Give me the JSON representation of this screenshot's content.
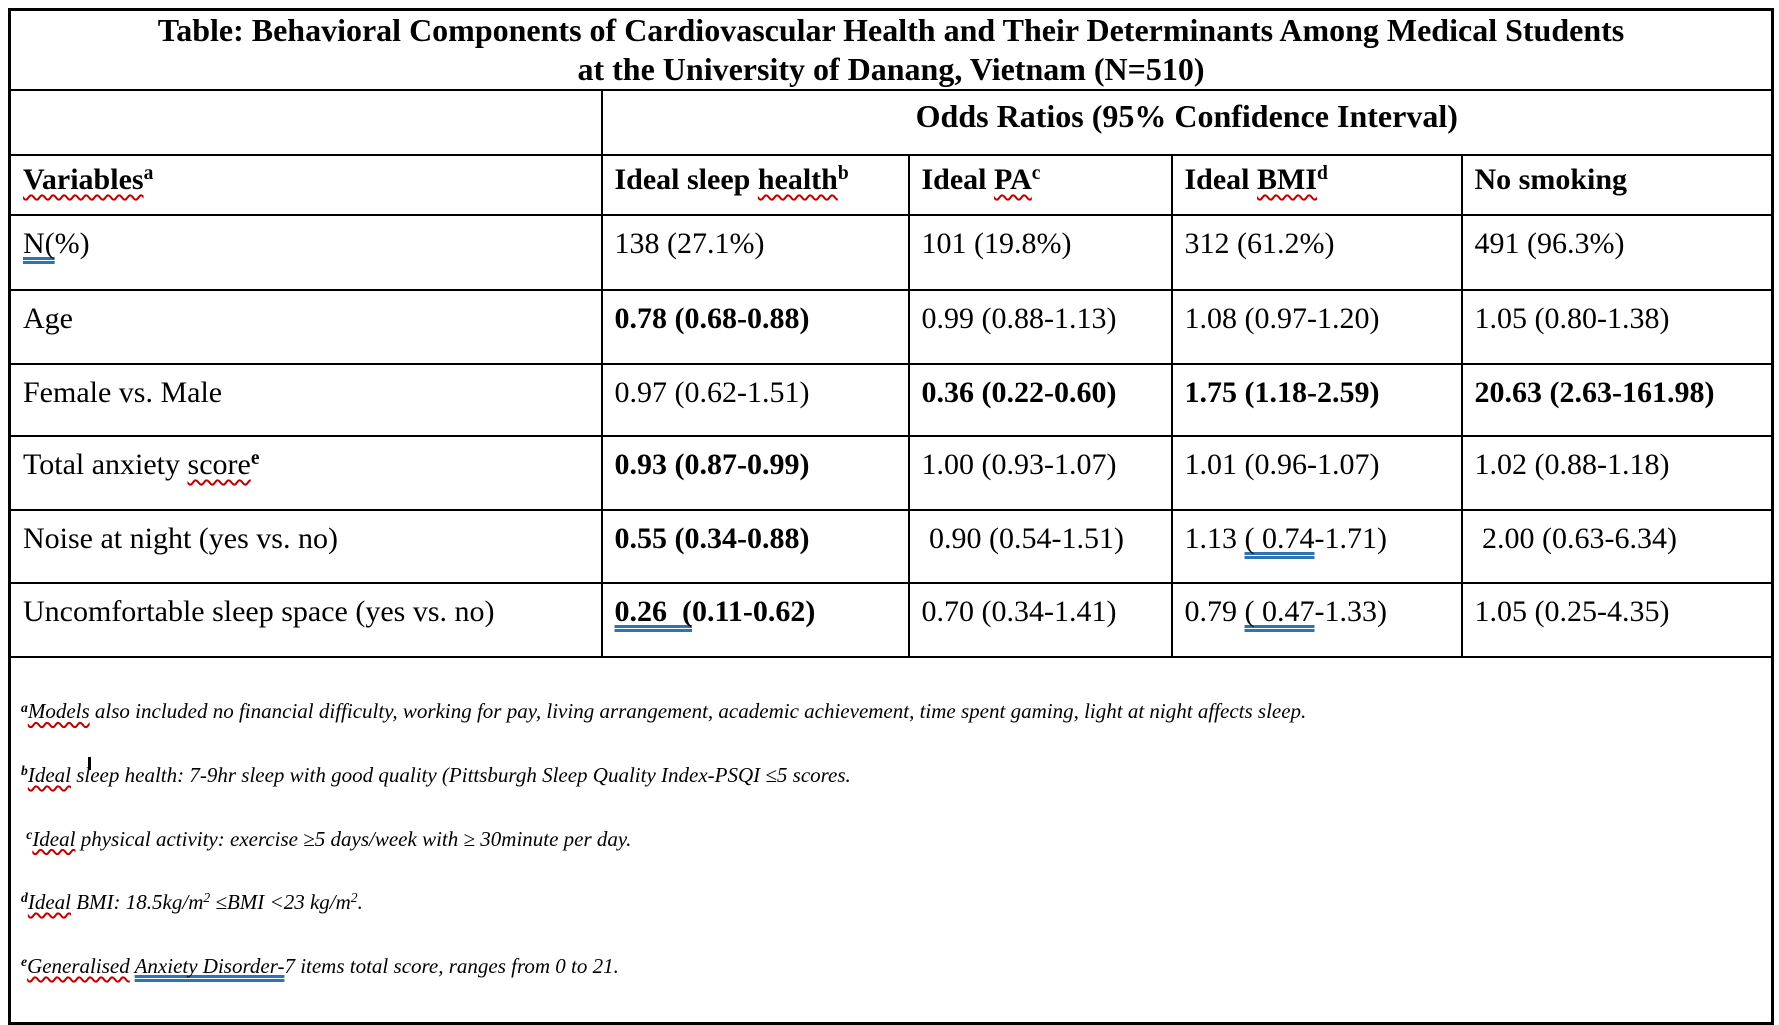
{
  "colors": {
    "border_black": "#000000",
    "spellcheck_red": "#c00000",
    "grammar_blue": "#2e74b5"
  },
  "title": {
    "line1": "Table: Behavioral Components of Cardiovascular Health and Their Determinants Among Medical Students",
    "line2": "at the University of Danang, Vietnam (N=510)"
  },
  "spanner": "Odds Ratios (95% Confidence Interval)",
  "columns": [
    {
      "runs": [
        {
          "t": "Variables",
          "s": [
            "red"
          ]
        },
        {
          "t": "a",
          "s": [
            "sup"
          ]
        }
      ]
    },
    {
      "runs": [
        {
          "t": "Ideal sleep "
        },
        {
          "t": "health",
          "s": [
            "red"
          ]
        },
        {
          "t": "b",
          "s": [
            "sup"
          ]
        }
      ]
    },
    {
      "runs": [
        {
          "t": "Ideal "
        },
        {
          "t": "PA",
          "s": [
            "red"
          ]
        },
        {
          "t": "c",
          "s": [
            "sup"
          ]
        }
      ]
    },
    {
      "runs": [
        {
          "t": "Ideal "
        },
        {
          "t": "BMI",
          "s": [
            "red"
          ]
        },
        {
          "t": "d",
          "s": [
            "sup"
          ]
        }
      ]
    },
    {
      "runs": [
        {
          "t": "No smoking"
        }
      ]
    }
  ],
  "rows": [
    {
      "label": {
        "runs": [
          {
            "t": "N(",
            "s": [
              "blue"
            ]
          },
          {
            "t": "%)"
          }
        ]
      },
      "cells": [
        {
          "runs": [
            {
              "t": "138 (27.1%)"
            }
          ]
        },
        {
          "runs": [
            {
              "t": "101 (19.8%)"
            }
          ]
        },
        {
          "runs": [
            {
              "t": "312 (61.2%)"
            }
          ]
        },
        {
          "runs": [
            {
              "t": "491 (96.3%)"
            }
          ]
        }
      ]
    },
    {
      "label": {
        "runs": [
          {
            "t": "Age"
          }
        ]
      },
      "cells": [
        {
          "bold": true,
          "runs": [
            {
              "t": "0.78 (0.68-0.88)"
            }
          ]
        },
        {
          "runs": [
            {
              "t": "0.99 (0.88-1.13)"
            }
          ]
        },
        {
          "runs": [
            {
              "t": "1.08 (0.97-1.20)"
            }
          ]
        },
        {
          "runs": [
            {
              "t": "1.05 (0.80-1.38)"
            }
          ]
        }
      ]
    },
    {
      "label": {
        "runs": [
          {
            "t": "Female vs. Male"
          }
        ]
      },
      "cells": [
        {
          "runs": [
            {
              "t": "0.97 (0.62-1.51)"
            }
          ]
        },
        {
          "bold": true,
          "runs": [
            {
              "t": "0.36 (0.22-0.60)"
            }
          ]
        },
        {
          "bold": true,
          "runs": [
            {
              "t": "1.75 (1.18-2.59)"
            }
          ]
        },
        {
          "bold": true,
          "runs": [
            {
              "t": "20.63 (2.63-161.98)"
            }
          ]
        }
      ]
    },
    {
      "label": {
        "runs": [
          {
            "t": "Total anxiety "
          },
          {
            "t": "score",
            "s": [
              "red"
            ]
          },
          {
            "t": "e",
            "s": [
              "sup",
              "b"
            ]
          }
        ]
      },
      "cells": [
        {
          "bold": true,
          "runs": [
            {
              "t": "0.93 (0.87-0.99)"
            }
          ]
        },
        {
          "runs": [
            {
              "t": "1.00 (0.93-1.07)"
            }
          ]
        },
        {
          "runs": [
            {
              "t": "1.01 (0.96-1.07)"
            }
          ]
        },
        {
          "runs": [
            {
              "t": "1.02 (0.88-1.18)"
            }
          ]
        }
      ]
    },
    {
      "label": {
        "runs": [
          {
            "t": "Noise at night (yes vs. no)"
          }
        ]
      },
      "cells": [
        {
          "bold": true,
          "runs": [
            {
              "t": "0.55 (0.34-0.88)"
            }
          ]
        },
        {
          "runs": [
            {
              "t": " 0.90 (0.54-1.51)"
            }
          ]
        },
        {
          "runs": [
            {
              "t": "1.13 "
            },
            {
              "t": "( 0.74",
              "s": [
                "blue"
              ]
            },
            {
              "t": "-1.71)"
            }
          ]
        },
        {
          "runs": [
            {
              "t": " 2.00 (0.63-6.34)"
            }
          ]
        }
      ]
    },
    {
      "label": {
        "runs": [
          {
            "t": "Uncomfortable sleep space (yes vs. no)"
          }
        ]
      },
      "cells": [
        {
          "bold": true,
          "runs": [
            {
              "t": "0.26  (",
              "s": [
                "blue"
              ]
            },
            {
              "t": "0.11-0.62)"
            }
          ]
        },
        {
          "runs": [
            {
              "t": "0.70 (0.34-1.41)"
            }
          ]
        },
        {
          "runs": [
            {
              "t": "0.79 "
            },
            {
              "t": "( 0.47",
              "s": [
                "blue"
              ]
            },
            {
              "t": "-1.33)"
            }
          ]
        },
        {
          "runs": [
            {
              "t": "1.05 (0.25-4.35)"
            }
          ]
        }
      ]
    }
  ],
  "footnotes": [
    {
      "runs": [
        {
          "t": "a",
          "s": [
            "sup",
            "b"
          ]
        },
        {
          "t": "Models",
          "s": [
            "red"
          ]
        },
        {
          "t": " also included no financial difficulty, working for pay, living arrangement, academic achievement, time spent gaming, light at night affects sleep."
        }
      ]
    },
    {
      "runs": [
        {
          "t": "b",
          "s": [
            "sup",
            "b"
          ]
        },
        {
          "t": "Ideal",
          "s": [
            "red"
          ]
        },
        {
          "t": " sleep health: 7-9hr sleep with good quality (Pittsburgh Sleep Quality Index-PSQI ≤5 scores."
        }
      ]
    },
    {
      "runs": [
        {
          "t": " "
        },
        {
          "t": "c",
          "s": [
            "sup",
            "b"
          ]
        },
        {
          "t": "Ideal",
          "s": [
            "red"
          ]
        },
        {
          "t": " physical activity: exercise ≥5 days/week with ≥ 30minute per day."
        }
      ]
    },
    {
      "runs": [
        {
          "t": "d",
          "s": [
            "sup",
            "b"
          ]
        },
        {
          "t": "Ideal",
          "s": [
            "red"
          ]
        },
        {
          "t": " BMI: 18.5kg/m"
        },
        {
          "t": "2",
          "s": [
            "sup"
          ]
        },
        {
          "t": " ≤BMI <23 kg/m"
        },
        {
          "t": "2",
          "s": [
            "sup"
          ]
        },
        {
          "t": "."
        }
      ]
    },
    {
      "runs": [
        {
          "t": "e",
          "s": [
            "sup",
            "b"
          ]
        },
        {
          "t": "Generalised",
          "s": [
            "red"
          ]
        },
        {
          "t": " "
        },
        {
          "t": "Anxiety Disorder-",
          "s": [
            "blue"
          ]
        },
        {
          "t": "7 items total score, ranges from 0 to 21."
        }
      ]
    }
  ]
}
